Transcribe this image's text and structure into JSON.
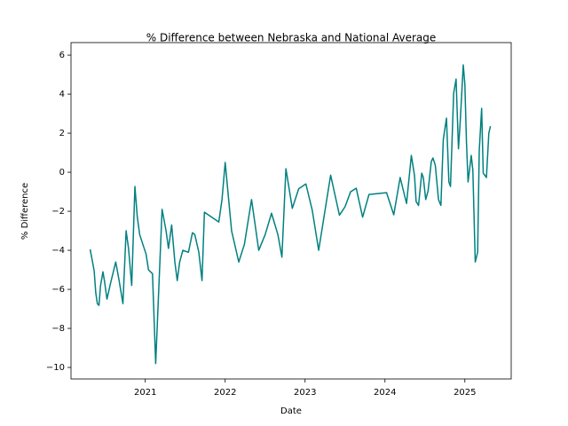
{
  "chart_data": {
    "type": "line",
    "title": "% Difference between Nebraska and National Average",
    "x_label": "Date",
    "y_label": "% Difference",
    "color": "#008080",
    "x": [
      2020.31,
      2020.36,
      2020.38,
      2020.4,
      2020.42,
      2020.44,
      2020.47,
      2020.49,
      2020.52,
      2020.57,
      2020.63,
      2020.67,
      2020.72,
      2020.76,
      2020.79,
      2020.83,
      2020.87,
      2020.9,
      2020.93,
      2021.01,
      2021.04,
      2021.09,
      2021.13,
      2021.21,
      2021.26,
      2021.29,
      2021.33,
      2021.37,
      2021.4,
      2021.43,
      2021.47,
      2021.54,
      2021.59,
      2021.62,
      2021.67,
      2021.71,
      2021.74,
      2021.92,
      2021.96,
      2022.0,
      2022.08,
      2022.17,
      2022.24,
      2022.33,
      2022.42,
      2022.5,
      2022.58,
      2022.66,
      2022.71,
      2022.76,
      2022.84,
      2022.92,
      2023.01,
      2023.09,
      2023.17,
      2023.32,
      2023.43,
      2023.5,
      2023.57,
      2023.64,
      2023.72,
      2023.8,
      2024.02,
      2024.11,
      2024.19,
      2024.27,
      2024.33,
      2024.37,
      2024.39,
      2024.42,
      2024.46,
      2024.48,
      2024.51,
      2024.54,
      2024.58,
      2024.6,
      2024.63,
      2024.67,
      2024.7,
      2024.73,
      2024.77,
      2024.8,
      2024.82,
      2024.86,
      2024.89,
      2024.92,
      2024.94,
      2024.98,
      2025.0,
      2025.02,
      2025.04,
      2025.08,
      2025.1,
      2025.13,
      2025.16,
      2025.18,
      2025.21,
      2025.23,
      2025.27,
      2025.3,
      2025.32
    ],
    "values": [
      -3.95,
      -5.05,
      -6.18,
      -6.73,
      -6.82,
      -5.8,
      -5.1,
      -5.6,
      -6.5,
      -5.6,
      -4.6,
      -5.5,
      -6.73,
      -3.0,
      -3.9,
      -5.8,
      -0.73,
      -2.3,
      -3.2,
      -4.2,
      -5.0,
      -5.2,
      -9.8,
      -1.9,
      -3.0,
      -3.9,
      -2.7,
      -4.6,
      -5.55,
      -4.6,
      -4.0,
      -4.1,
      -3.1,
      -3.2,
      -4.1,
      -5.55,
      -2.05,
      -2.55,
      -1.4,
      0.5,
      -3.0,
      -4.6,
      -3.7,
      -1.4,
      -4.0,
      -3.2,
      -2.1,
      -3.2,
      -4.35,
      0.18,
      -1.85,
      -0.85,
      -0.6,
      -1.95,
      -4.0,
      -0.15,
      -2.2,
      -1.77,
      -1.0,
      -0.82,
      -2.3,
      -1.14,
      -1.05,
      -2.18,
      -0.27,
      -1.6,
      0.86,
      -0.18,
      -1.5,
      -1.7,
      -0.05,
      -0.27,
      -1.4,
      -0.95,
      0.55,
      0.73,
      0.36,
      -1.4,
      -1.7,
      1.68,
      2.77,
      -0.5,
      -0.73,
      4.05,
      4.77,
      1.2,
      2.45,
      5.5,
      4.5,
      1.55,
      -0.5,
      0.86,
      0.1,
      -4.6,
      -4.1,
      1.1,
      3.27,
      -0.05,
      -0.27,
      2.0,
      2.36
    ],
    "xlim": [
      2020.07,
      2025.58
    ],
    "xticks": [
      2021,
      2022,
      2023,
      2024,
      2025
    ],
    "ylim": [
      -10.59,
      6.64
    ],
    "yticks": [
      {
        "value": -10,
        "label": "−10"
      },
      {
        "value": -8,
        "label": "−8"
      },
      {
        "value": -6,
        "label": "−6"
      },
      {
        "value": -4,
        "label": "−4"
      },
      {
        "value": -2,
        "label": "−2"
      },
      0,
      2,
      4,
      6
    ]
  }
}
